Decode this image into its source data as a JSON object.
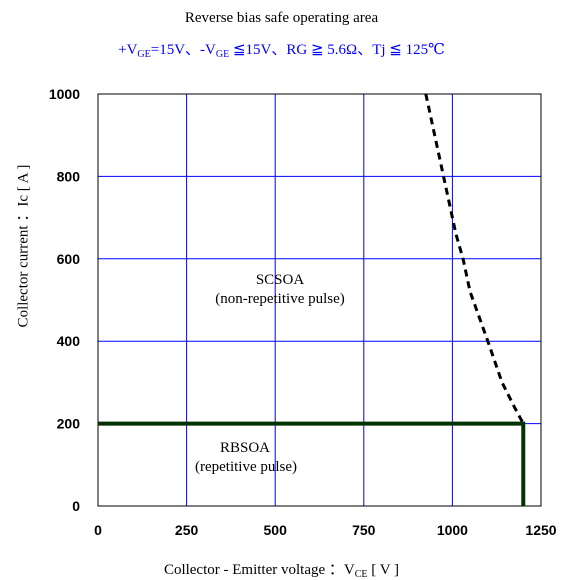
{
  "chart_data": {
    "type": "line",
    "title": "Reverse bias safe operating area",
    "subtitle": {
      "vge_pos_prefix": "+V",
      "vge_sub": "GE",
      "vge_pos_rest": "=15V、-V",
      "vge_neg_sub": "GE",
      "rest": " ≦15V、RG ≧ 5.6Ω、Tj ≦ 125℃"
    },
    "xlabel": {
      "prefix": "Collector - Emitter voltage ：V",
      "sub": "CE",
      "suffix": " [ V ]"
    },
    "ylabel": "Collector current ：Ic  [ A ]",
    "xlim": [
      0,
      1250
    ],
    "ylim": [
      0,
      1000
    ],
    "xticks": [
      "0",
      "250",
      "500",
      "750",
      "1000",
      "1250"
    ],
    "yticks": [
      "0",
      "200",
      "400",
      "600",
      "800",
      "1000"
    ],
    "grid": true,
    "grid_color": "#0000ff",
    "series": [
      {
        "name": "SCSOA",
        "style": "dashed",
        "color": "#000000",
        "x": [
          925,
          960,
          1010,
          1030,
          1050,
          1100,
          1140,
          1175,
          1200
        ],
        "y": [
          1000,
          860,
          660,
          600,
          520,
          400,
          300,
          240,
          200
        ]
      },
      {
        "name": "RBSOA",
        "style": "solid",
        "color": "#003300",
        "x": [
          0,
          1200,
          1200
        ],
        "y": [
          200,
          200,
          0
        ]
      }
    ],
    "annotations": [
      {
        "line1": "SCSOA",
        "line2": "(non-repetitive pulse)"
      },
      {
        "line1": "RBSOA",
        "line2": "(repetitive pulse)"
      }
    ]
  }
}
